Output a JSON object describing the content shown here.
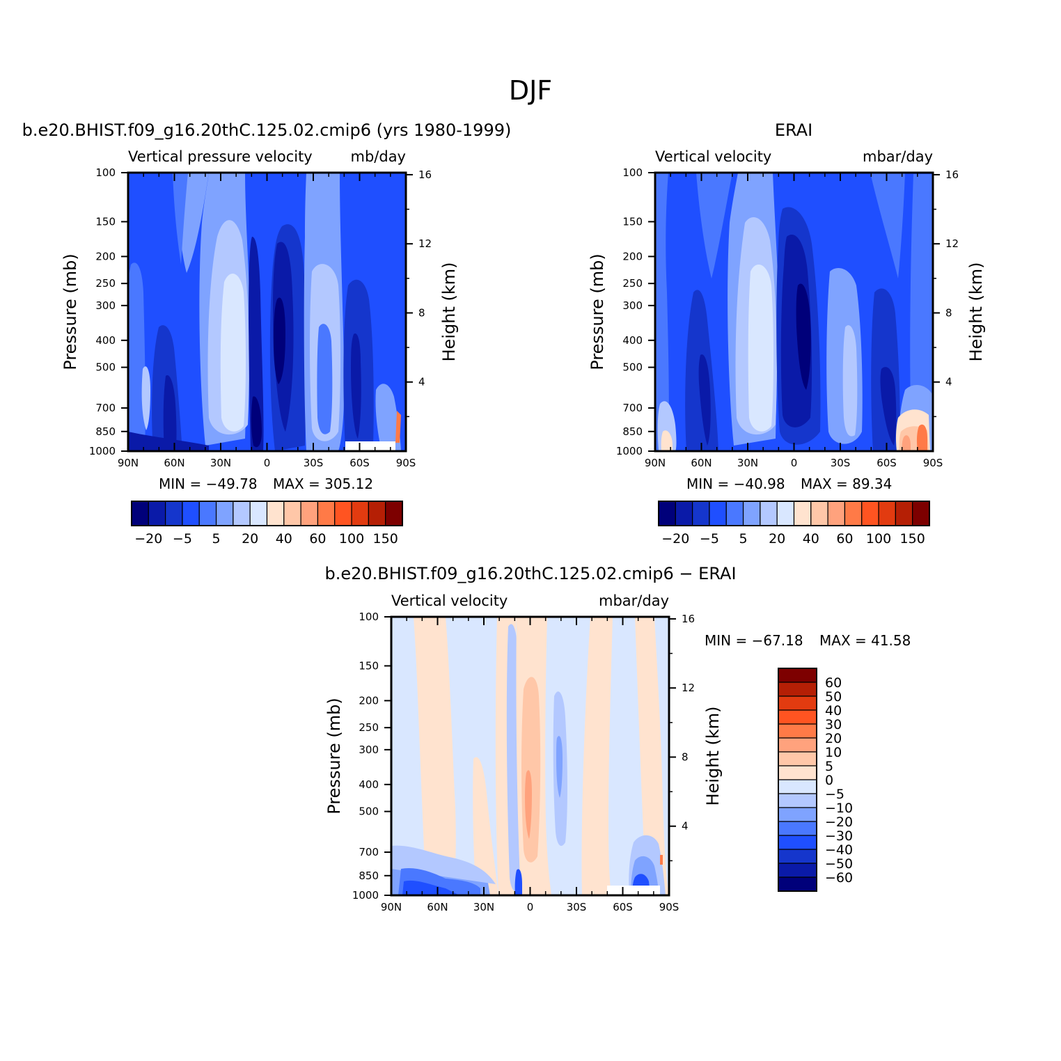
{
  "page_title": "DJF",
  "colors": {
    "dark_navy": "#00007a",
    "navy": "#0a1aa8",
    "deep_blue": "#1536cc",
    "blue": "#1f4fff",
    "medium_blue": "#4a78ff",
    "light_blue": "#7fa3ff",
    "pale_blue": "#b3c8ff",
    "very_pale_blue": "#d9e7ff",
    "pale_peach": "#ffe3cf",
    "peach": "#ffc7a8",
    "salmon": "#ffa27d",
    "orange": "#ff7a47",
    "red_orange": "#ff5421",
    "red": "#e23b10",
    "dark_red": "#b51f05",
    "maroon": "#7d0000"
  },
  "chart_data": [
    {
      "id": "model",
      "type": "heatmap",
      "case_title": "b.e20.BHIST.f09_g16.20thC.125.02.cmip6 (yrs 1980-1999)",
      "variable": "Vertical pressure velocity",
      "units": "mb/day",
      "ylabel": "Pressure (mb)",
      "ylabel_right": "Height (km)",
      "x_ticks": [
        "90N",
        "60N",
        "30N",
        "0",
        "30S",
        "60S",
        "90S"
      ],
      "y_ticks": [
        "100",
        "150",
        "200",
        "250",
        "300",
        "400",
        "500",
        "700",
        "850",
        "1000"
      ],
      "y_ticks_right": [
        "16",
        "12",
        "8",
        "4"
      ],
      "ylim": [
        1000,
        100
      ],
      "min_label": "MIN = −49.78",
      "max_label": "MAX = 305.12",
      "min": -49.78,
      "max": 305.12,
      "colorbar": {
        "orientation": "horizontal",
        "colors": [
          "#00007a",
          "#0a1aa8",
          "#1536cc",
          "#1f4fff",
          "#4a78ff",
          "#7fa3ff",
          "#b3c8ff",
          "#d9e7ff",
          "#ffe3cf",
          "#ffc7a8",
          "#ffa27d",
          "#ff7a47",
          "#ff5421",
          "#e23b10",
          "#b51f05",
          "#7d0000"
        ],
        "labels": [
          "−20",
          "−5",
          "5",
          "20",
          "40",
          "60",
          "100",
          "150"
        ]
      }
    },
    {
      "id": "obs",
      "type": "heatmap",
      "case_title": "ERAI",
      "variable": "Vertical velocity",
      "units": "mbar/day",
      "ylabel": "Pressure (mb)",
      "ylabel_right": "Height (km)",
      "x_ticks": [
        "90N",
        "60N",
        "30N",
        "0",
        "30S",
        "60S",
        "90S"
      ],
      "y_ticks": [
        "100",
        "150",
        "200",
        "250",
        "300",
        "400",
        "500",
        "700",
        "850",
        "1000"
      ],
      "y_ticks_right": [
        "16",
        "12",
        "8",
        "4"
      ],
      "ylim": [
        1000,
        100
      ],
      "min_label": "MIN = −40.98",
      "max_label": "MAX = 89.34",
      "min": -40.98,
      "max": 89.34,
      "colorbar": {
        "orientation": "horizontal",
        "colors": [
          "#00007a",
          "#0a1aa8",
          "#1536cc",
          "#1f4fff",
          "#4a78ff",
          "#7fa3ff",
          "#b3c8ff",
          "#d9e7ff",
          "#ffe3cf",
          "#ffc7a8",
          "#ffa27d",
          "#ff7a47",
          "#ff5421",
          "#e23b10",
          "#b51f05",
          "#7d0000"
        ],
        "labels": [
          "−20",
          "−5",
          "5",
          "20",
          "40",
          "60",
          "100",
          "150"
        ]
      }
    },
    {
      "id": "diff",
      "type": "heatmap",
      "case_title": "b.e20.BHIST.f09_g16.20thC.125.02.cmip6 − ERAI",
      "variable": "Vertical velocity",
      "units": "mbar/day",
      "ylabel": "Pressure (mb)",
      "ylabel_right": "Height (km)",
      "x_ticks": [
        "90N",
        "60N",
        "30N",
        "0",
        "30S",
        "60S",
        "90S"
      ],
      "y_ticks": [
        "100",
        "150",
        "200",
        "250",
        "300",
        "400",
        "500",
        "700",
        "850",
        "1000"
      ],
      "y_ticks_right": [
        "16",
        "12",
        "8",
        "4"
      ],
      "ylim": [
        1000,
        100
      ],
      "min_label": "MIN = −67.18",
      "max_label": "MAX = 41.58",
      "min": -67.18,
      "max": 41.58,
      "colorbar": {
        "orientation": "vertical",
        "colors": [
          "#7d0000",
          "#b51f05",
          "#e23b10",
          "#ff5421",
          "#ff7a47",
          "#ffa27d",
          "#ffc7a8",
          "#ffe3cf",
          "#d9e7ff",
          "#b3c8ff",
          "#7fa3ff",
          "#4a78ff",
          "#1f4fff",
          "#1536cc",
          "#0a1aa8",
          "#00007a"
        ],
        "labels": [
          "60",
          "50",
          "40",
          "30",
          "20",
          "10",
          "5",
          "0",
          "−5",
          "−10",
          "−20",
          "−30",
          "−40",
          "−50",
          "−60"
        ]
      }
    }
  ]
}
